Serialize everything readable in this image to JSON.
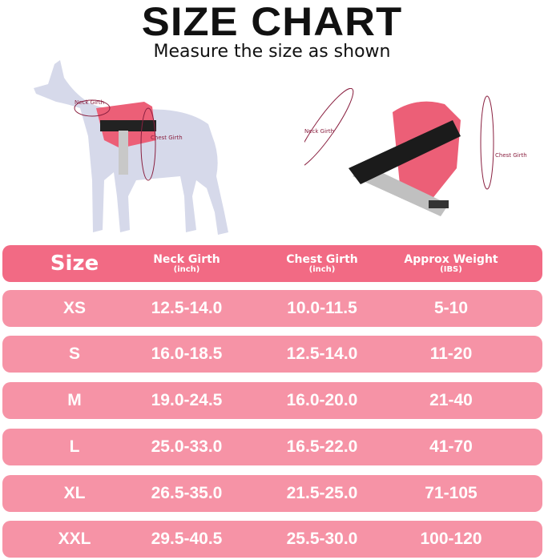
{
  "title": "SIZE CHART",
  "subtitle": "Measure the size as shown",
  "illustration": {
    "left_labels": {
      "neck": "Neck Girth",
      "chest": "Chest Girth"
    },
    "right_labels": {
      "neck": "Neck Girth",
      "chest": "Chest Girth"
    }
  },
  "colors": {
    "header": "#f26a84",
    "row": "#f693a6",
    "harness": "#ec5f77",
    "dog": "#d6d9ea"
  },
  "table": {
    "headers": [
      {
        "label": "Size",
        "unit": ""
      },
      {
        "label": "Neck Girth",
        "unit": "(inch)"
      },
      {
        "label": "Chest Girth",
        "unit": "(inch)"
      },
      {
        "label": "Approx Weight",
        "unit": "(IBS)"
      }
    ],
    "rows": [
      [
        "XS",
        "12.5-14.0",
        "10.0-11.5",
        "5-10"
      ],
      [
        "S",
        "16.0-18.5",
        "12.5-14.0",
        "11-20"
      ],
      [
        "M",
        "19.0-24.5",
        "16.0-20.0",
        "21-40"
      ],
      [
        "L",
        "25.0-33.0",
        "16.5-22.0",
        "41-70"
      ],
      [
        "XL",
        "26.5-35.0",
        "21.5-25.0",
        "71-105"
      ],
      [
        "XXL",
        "29.5-40.5",
        "25.5-30.0",
        "100-120"
      ]
    ]
  }
}
